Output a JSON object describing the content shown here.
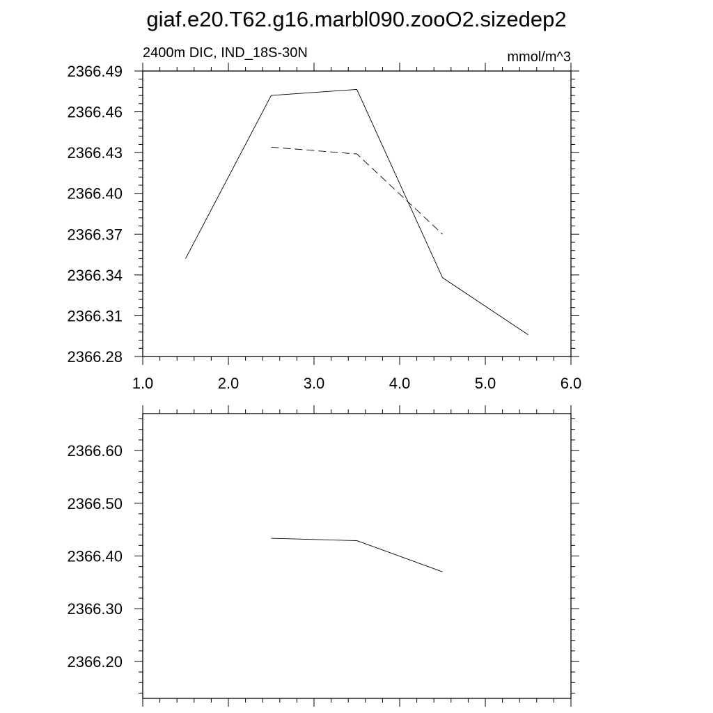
{
  "title": "giaf.e20.T62.g16.marbl090.zooO2.sizedep2",
  "chart_data": [
    {
      "type": "line",
      "title": "",
      "subtitle_left": "2400m DIC, IND_18S-30N",
      "subtitle_right": "mmol/m^3",
      "xlim": [
        1.0,
        6.0
      ],
      "ylim": [
        2366.28,
        2366.49
      ],
      "x_ticks": [
        1.0,
        2.0,
        3.0,
        4.0,
        5.0,
        6.0
      ],
      "x_tick_labels": [
        "1.0",
        "2.0",
        "3.0",
        "4.0",
        "5.0",
        "6.0"
      ],
      "y_ticks": [
        2366.28,
        2366.31,
        2366.34,
        2366.37,
        2366.4,
        2366.43,
        2366.46,
        2366.49
      ],
      "y_tick_labels": [
        "2366.28",
        "2366.31",
        "2366.34",
        "2366.37",
        "2366.40",
        "2366.43",
        "2366.46",
        "2366.49"
      ],
      "grid": false,
      "series": [
        {
          "style": "solid",
          "x": [
            1.5,
            2.5,
            3.5,
            4.5,
            5.5
          ],
          "y": [
            2366.352,
            2366.472,
            2366.4765,
            2366.338,
            2366.296
          ]
        },
        {
          "style": "dashed",
          "x": [
            2.5,
            3.5,
            4.5
          ],
          "y": [
            2366.434,
            2366.429,
            2366.37
          ]
        }
      ]
    },
    {
      "type": "line",
      "title": "",
      "xlim": [
        1.0,
        6.0
      ],
      "ylim": [
        2366.13,
        2366.67
      ],
      "x_ticks": [
        1.0,
        2.0,
        3.0,
        4.0,
        5.0,
        6.0
      ],
      "y_ticks": [
        2366.2,
        2366.3,
        2366.4,
        2366.5,
        2366.6
      ],
      "y_tick_labels": [
        "2366.20",
        "2366.30",
        "2366.40",
        "2366.50",
        "2366.60"
      ],
      "grid": false,
      "series": [
        {
          "style": "solid",
          "x": [
            2.5,
            3.5,
            4.5
          ],
          "y": [
            2366.4335,
            2366.429,
            2366.37
          ]
        }
      ]
    }
  ]
}
